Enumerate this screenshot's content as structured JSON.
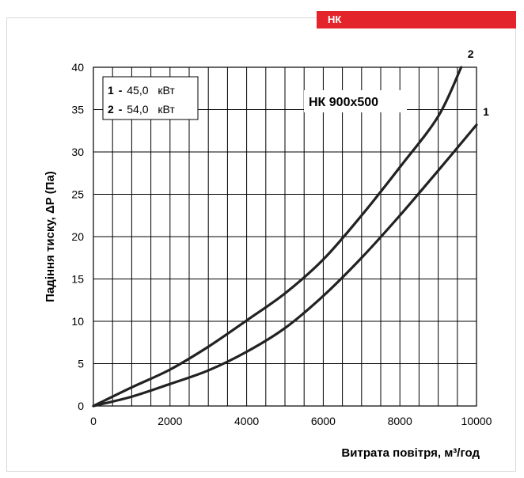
{
  "header": {
    "badge_label": "НК"
  },
  "chart_data": {
    "type": "line",
    "title": "",
    "xlabel": "Витрата повітря, м³/год",
    "ylabel": "Падіння тиску, ΔP (Па)",
    "xlim": [
      0,
      10000
    ],
    "ylim": [
      0,
      40
    ],
    "x_ticks": [
      0,
      2000,
      4000,
      6000,
      8000,
      10000
    ],
    "y_ticks": [
      0,
      5,
      10,
      15,
      20,
      25,
      30,
      35,
      40
    ],
    "x_minor_step": 500,
    "grid": true,
    "annotation": "НК 900x500",
    "legend": {
      "placement": "top-left",
      "entries": [
        {
          "key": "1",
          "dash": "-",
          "value": "45,0",
          "unit": "кВт"
        },
        {
          "key": "2",
          "dash": "-",
          "value": "54,0",
          "unit": "кВт"
        }
      ]
    },
    "series": [
      {
        "name": "1",
        "color": "#222222",
        "points": [
          [
            0,
            0
          ],
          [
            1000,
            1.1
          ],
          [
            2000,
            2.6
          ],
          [
            3000,
            4.2
          ],
          [
            4000,
            6.4
          ],
          [
            5000,
            9.2
          ],
          [
            6000,
            13.0
          ],
          [
            7000,
            17.5
          ],
          [
            8000,
            22.5
          ],
          [
            9000,
            27.8
          ],
          [
            10000,
            33.2
          ]
        ]
      },
      {
        "name": "2",
        "color": "#222222",
        "points": [
          [
            0,
            0
          ],
          [
            1000,
            2.2
          ],
          [
            2000,
            4.3
          ],
          [
            3000,
            7.0
          ],
          [
            4000,
            10.1
          ],
          [
            5000,
            13.3
          ],
          [
            6000,
            17.3
          ],
          [
            7000,
            22.5
          ],
          [
            8000,
            28.2
          ],
          [
            9000,
            34.2
          ],
          [
            9600,
            40
          ]
        ]
      }
    ]
  }
}
